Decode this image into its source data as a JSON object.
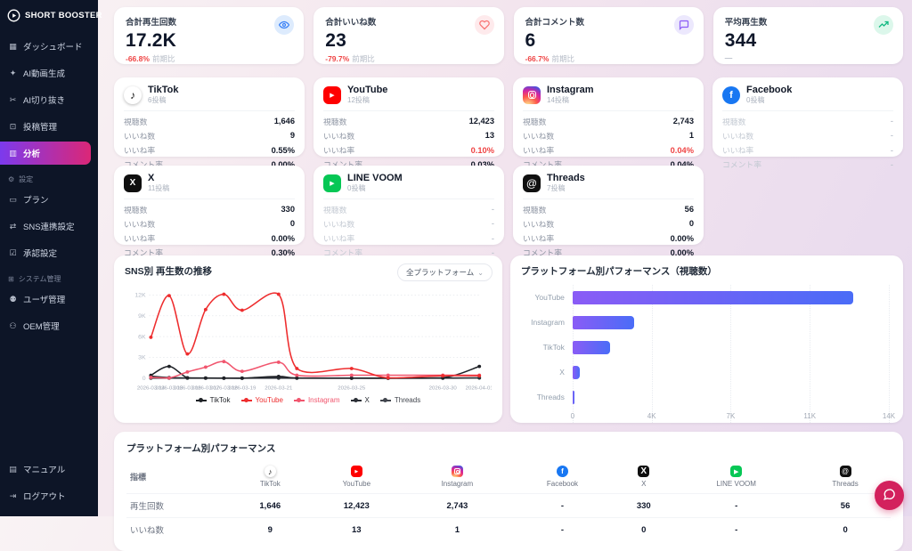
{
  "app": {
    "name": "SHORT BOOSTER"
  },
  "sidebar": {
    "items": [
      {
        "slug": "dashboard",
        "label": "ダッシュボード",
        "icon": "dashboard-icon",
        "active": false
      },
      {
        "slug": "ai-video",
        "label": "AI動画生成",
        "icon": "ai-video-icon",
        "active": false
      },
      {
        "slug": "ai-clip",
        "label": "AI切り抜き",
        "icon": "ai-clip-icon",
        "active": false
      },
      {
        "slug": "posts",
        "label": "投稿管理",
        "icon": "post-management-icon",
        "active": false
      },
      {
        "slug": "analytics",
        "label": "分析",
        "icon": "analytics-icon",
        "active": true
      }
    ],
    "sections": [
      {
        "label": "設定",
        "icon": "gear-icon",
        "items": [
          {
            "slug": "plan",
            "label": "プラン",
            "icon": "plan-icon"
          },
          {
            "slug": "sns-settings",
            "label": "SNS連携設定",
            "icon": "sns-link-icon"
          },
          {
            "slug": "approval",
            "label": "承認設定",
            "icon": "approval-icon"
          }
        ]
      },
      {
        "label": "システム管理",
        "icon": "system-icon",
        "items": [
          {
            "slug": "users",
            "label": "ユーザ管理",
            "icon": "users-icon"
          },
          {
            "slug": "oem",
            "label": "OEM管理",
            "icon": "oem-icon"
          }
        ]
      }
    ],
    "footer": [
      {
        "slug": "manual",
        "label": "マニュアル",
        "icon": "manual-icon"
      },
      {
        "slug": "logout",
        "label": "ログアウト",
        "icon": "logout-icon"
      }
    ]
  },
  "stats": [
    {
      "slug": "total-plays",
      "label": "合計再生回数",
      "value": "17.2K",
      "change": "-66.8%",
      "suffix": "前期比",
      "icon": "eye-icon",
      "icon_bg": "#ddebfd",
      "icon_color": "#3b82f6"
    },
    {
      "slug": "total-likes",
      "label": "合計いいね数",
      "value": "23",
      "change": "-79.7%",
      "suffix": "前期比",
      "icon": "heart-icon",
      "icon_bg": "#feeaec",
      "icon_color": "#f87171"
    },
    {
      "slug": "total-comments",
      "label": "合計コメント数",
      "value": "6",
      "change": "-66.7%",
      "suffix": "前期比",
      "icon": "comment-icon",
      "icon_bg": "#ece8fd",
      "icon_color": "#8b5cf6"
    },
    {
      "slug": "avg-plays",
      "label": "平均再生数",
      "value": "344",
      "change": "—",
      "suffix": "",
      "icon": "trend-up-icon",
      "icon_bg": "#dcf7eb",
      "icon_color": "#10b981"
    }
  ],
  "metric_labels": {
    "views": "視聴数",
    "likes": "いいね数",
    "like_rate": "いいね率",
    "comment_rate": "コメント率"
  },
  "platform_cards": [
    {
      "slug": "tiktok",
      "name": "TikTok",
      "posts": "6投稿",
      "icon": "tiktok-icon",
      "views": "1,646",
      "likes": "9",
      "like_rate": "0.55%",
      "comment_rate": "0.00%",
      "like_rate_red": false,
      "empty": false
    },
    {
      "slug": "youtube",
      "name": "YouTube",
      "posts": "12投稿",
      "icon": "youtube-icon",
      "views": "12,423",
      "likes": "13",
      "like_rate": "0.10%",
      "comment_rate": "0.03%",
      "like_rate_red": true,
      "empty": false
    },
    {
      "slug": "instagram",
      "name": "Instagram",
      "posts": "14投稿",
      "icon": "instagram-icon",
      "views": "2,743",
      "likes": "1",
      "like_rate": "0.04%",
      "comment_rate": "0.04%",
      "like_rate_red": true,
      "empty": false
    },
    {
      "slug": "facebook",
      "name": "Facebook",
      "posts": "0投稿",
      "icon": "facebook-icon",
      "views": "-",
      "likes": "-",
      "like_rate": "-",
      "comment_rate": "-",
      "like_rate_red": false,
      "empty": true
    },
    {
      "slug": "x",
      "name": "X",
      "posts": "11投稿",
      "icon": "x-icon",
      "views": "330",
      "likes": "0",
      "like_rate": "0.00%",
      "comment_rate": "0.30%",
      "like_rate_red": false,
      "empty": false
    },
    {
      "slug": "line-voom",
      "name": "LINE VOOM",
      "posts": "0投稿",
      "icon": "line-voom-icon",
      "views": "-",
      "likes": "-",
      "like_rate": "-",
      "comment_rate": "-",
      "like_rate_red": false,
      "empty": true
    },
    {
      "slug": "threads",
      "name": "Threads",
      "posts": "7投稿",
      "icon": "threads-icon",
      "views": "56",
      "likes": "0",
      "like_rate": "0.00%",
      "comment_rate": "0.00%",
      "like_rate_red": false,
      "empty": false
    }
  ],
  "chart_data": [
    {
      "type": "line",
      "title": "SNS別 再生数の推移",
      "filter_label": "全プラットフォーム",
      "ylim": [
        0,
        12500
      ],
      "y_ticks": [
        {
          "v": 0,
          "label": "0"
        },
        {
          "v": 3000,
          "label": "3K"
        },
        {
          "v": 6000,
          "label": "6K"
        },
        {
          "v": 9000,
          "label": "9K"
        },
        {
          "v": 12000,
          "label": "12K"
        }
      ],
      "x_day_offsets": [
        0,
        1,
        2,
        3,
        4,
        5,
        7,
        8,
        11,
        13,
        16,
        18
      ],
      "x_tick_labels": [
        {
          "d": 0,
          "label": "2026-03-14"
        },
        {
          "d": 1,
          "label": "2026-03-15"
        },
        {
          "d": 2,
          "label": "2026-03-16"
        },
        {
          "d": 3,
          "label": "2026-03-17"
        },
        {
          "d": 4,
          "label": "2026-03-18"
        },
        {
          "d": 5,
          "label": "2026-03-19"
        },
        {
          "d": 7,
          "label": "2026-03-21"
        },
        {
          "d": 11,
          "label": "2026-03-25"
        },
        {
          "d": 16,
          "label": "2026-03-30"
        },
        {
          "d": 18,
          "label": "2026-04-01"
        }
      ],
      "series": [
        {
          "name": "Threads",
          "color": "#41454d",
          "values": [
            10,
            5,
            5,
            5,
            5,
            5,
            10,
            5,
            5,
            5,
            5,
            30
          ]
        },
        {
          "name": "X",
          "color": "#2b2f36",
          "values": [
            300,
            90,
            40,
            20,
            10,
            10,
            90,
            20,
            10,
            10,
            20,
            50
          ]
        },
        {
          "name": "TikTok",
          "color": "#1f2227",
          "values": [
            420,
            1700,
            60,
            30,
            20,
            10,
            260,
            30,
            20,
            10,
            60,
            1700
          ]
        },
        {
          "name": "Instagram",
          "color": "#f1566e",
          "values": [
            120,
            30,
            900,
            1600,
            2400,
            1000,
            2300,
            430,
            430,
            430,
            430,
            430
          ]
        },
        {
          "name": "YouTube",
          "color": "#ee2d2e",
          "values": [
            5900,
            11900,
            3500,
            9900,
            12100,
            9800,
            12100,
            1400,
            1400,
            50,
            350,
            350
          ]
        }
      ],
      "legend_order": [
        "TikTok",
        "YouTube",
        "Instagram",
        "X",
        "Threads"
      ],
      "grid": true,
      "legend_position": "bottom"
    },
    {
      "type": "bar",
      "title": "プラットフォーム別パフォーマンス（視聴数）",
      "categories": [
        "YouTube",
        "Instagram",
        "TikTok",
        "X",
        "Threads"
      ],
      "values": [
        12423,
        2743,
        1646,
        330,
        56
      ],
      "xlim": [
        0,
        14000
      ],
      "x_ticks": [
        "0",
        "4K",
        "7K",
        "11K",
        "14K"
      ],
      "bar_gradient": [
        "#8a5cf6",
        "#4a6cf7"
      ],
      "orientation": "horizontal"
    }
  ],
  "table": {
    "title": "プラットフォーム別パフォーマンス",
    "metric_header": "指標",
    "columns": [
      {
        "slug": "tiktok",
        "name": "TikTok",
        "icon": "tiktok-icon"
      },
      {
        "slug": "youtube",
        "name": "YouTube",
        "icon": "youtube-icon"
      },
      {
        "slug": "instagram",
        "name": "Instagram",
        "icon": "instagram-icon"
      },
      {
        "slug": "facebook",
        "name": "Facebook",
        "icon": "facebook-icon"
      },
      {
        "slug": "x",
        "name": "X",
        "icon": "x-icon"
      },
      {
        "slug": "line-voom",
        "name": "LINE VOOM",
        "icon": "line-voom-icon"
      },
      {
        "slug": "threads",
        "name": "Threads",
        "icon": "threads-icon"
      }
    ],
    "rows": [
      {
        "metric": "再生回数",
        "values": [
          "1,646",
          "12,423",
          "2,743",
          "-",
          "330",
          "-",
          "56"
        ]
      },
      {
        "metric": "いいね数",
        "values": [
          "9",
          "13",
          "1",
          "-",
          "0",
          "-",
          "0"
        ]
      }
    ]
  },
  "chat_button": {
    "icon": "chat-bubble-icon",
    "color": "#d3215d"
  }
}
